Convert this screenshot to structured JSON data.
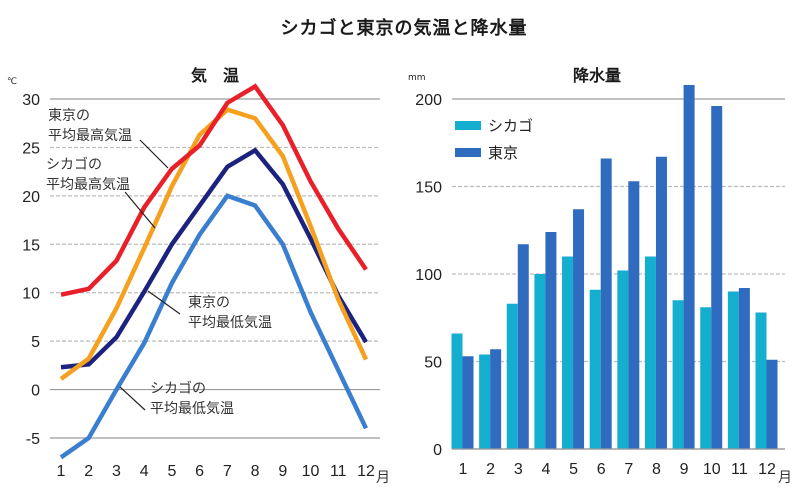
{
  "title": "シカゴと東京の気温と降水量",
  "chart_data": [
    {
      "type": "line",
      "title": "気　温",
      "ylabel": "℃",
      "xlabel": "月",
      "ylim": [
        -5,
        30
      ],
      "yticks": [
        30,
        25,
        20,
        15,
        10,
        5,
        0,
        -5
      ],
      "yticks_labels": [
        "30",
        "25",
        "20",
        "15",
        "10",
        "5",
        "0",
        "-5"
      ],
      "categories": [
        "1",
        "2",
        "3",
        "4",
        "5",
        "6",
        "7",
        "8",
        "9",
        "10",
        "11",
        "12"
      ],
      "x_unit_label": "月",
      "grid": true,
      "series": [
        {
          "name": "東京の平均最高気温",
          "label_lines": [
            "東京の",
            "平均最高気温"
          ],
          "color": "#e8202a",
          "values": [
            9.8,
            10.4,
            13.3,
            18.8,
            22.8,
            25.2,
            29.6,
            31.3,
            27.3,
            21.5,
            16.6,
            12.4
          ]
        },
        {
          "name": "シカゴの平均最高気温",
          "label_lines": [
            "シカゴの",
            "平均最高気温"
          ],
          "color": "#f5a01e",
          "values": [
            1.1,
            3.2,
            8.4,
            14.6,
            21.0,
            26.3,
            28.9,
            28.0,
            24.1,
            16.9,
            9.3,
            3.1
          ]
        },
        {
          "name": "東京の平均最低気温",
          "label_lines": [
            "東京の",
            "平均最低気温"
          ],
          "color": "#1c237e",
          "values": [
            2.3,
            2.6,
            5.4,
            10.1,
            15.0,
            19.0,
            23.0,
            24.7,
            21.2,
            15.6,
            9.7,
            4.9
          ]
        },
        {
          "name": "シカゴの平均最低気温",
          "label_lines": [
            "シカゴの",
            "平均最低気温"
          ],
          "color": "#3a7fcf",
          "values": [
            -7.0,
            -5.0,
            0.0,
            4.8,
            11.0,
            16.0,
            20.0,
            19.0,
            15.0,
            8.0,
            2.0,
            -4.0
          ]
        }
      ]
    },
    {
      "type": "bar",
      "title": "降水量",
      "ylabel": "mm",
      "xlabel": "月",
      "ylim": [
        0,
        200
      ],
      "yticks": [
        200,
        150,
        100,
        50,
        0
      ],
      "yticks_labels": [
        "200",
        "150",
        "100",
        "50",
        "0"
      ],
      "categories": [
        "1",
        "2",
        "3",
        "4",
        "5",
        "6",
        "7",
        "8",
        "9",
        "10",
        "11",
        "12"
      ],
      "x_unit_label": "月",
      "grid": true,
      "legend": "top-left",
      "series": [
        {
          "name": "シカゴ",
          "color": "#14aecf",
          "values": [
            66,
            54,
            83,
            100,
            110,
            91,
            102,
            110,
            85,
            81,
            90,
            78
          ]
        },
        {
          "name": "東京",
          "color": "#2f6bbf",
          "values": [
            53,
            57,
            117,
            124,
            137,
            166,
            153,
            167,
            208,
            196,
            92,
            51
          ]
        }
      ]
    }
  ]
}
